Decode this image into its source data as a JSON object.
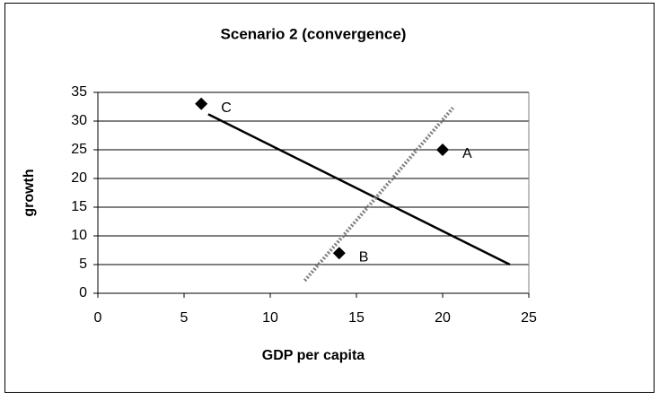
{
  "chart_data": {
    "type": "scatter",
    "title": "Scenario 2 (convergence)",
    "x_label": "GDP per capita",
    "y_label": "growth",
    "xlim": [
      0,
      25
    ],
    "ylim": [
      0,
      35
    ],
    "xticks": [
      0,
      5,
      10,
      15,
      20,
      25
    ],
    "yticks": [
      0,
      5,
      10,
      15,
      20,
      25,
      30,
      35
    ],
    "grid": true,
    "series": [
      {
        "x": [
          6,
          20,
          14
        ],
        "values": [
          33,
          25,
          7
        ],
        "point_labels": [
          "C",
          "A",
          "B"
        ],
        "color": "#000000",
        "marker": "diamond"
      }
    ],
    "lines": [
      {
        "x": [
          6.4,
          23.9
        ],
        "values": [
          31.2,
          5
        ],
        "color": "#000000",
        "style": "solid"
      },
      {
        "x": [
          12,
          20.6
        ],
        "values": [
          2.2,
          32.3
        ],
        "color": "#808080",
        "style": "dotted"
      }
    ]
  }
}
